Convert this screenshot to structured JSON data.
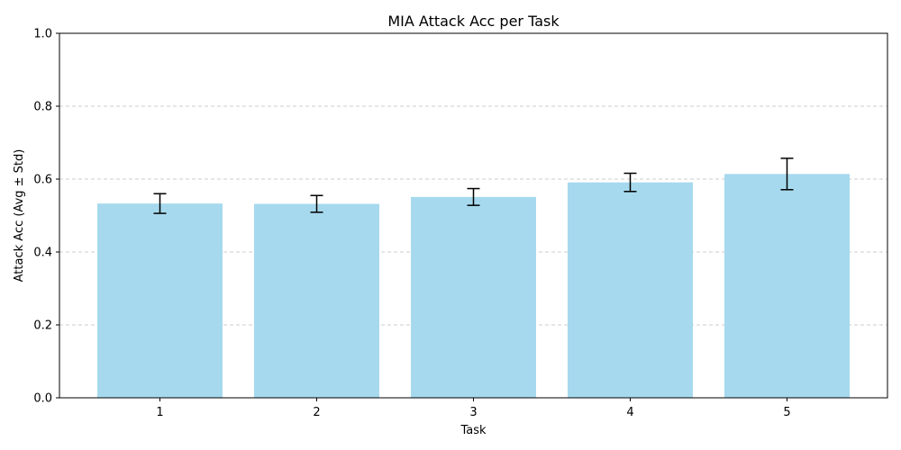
{
  "chart_data": {
    "type": "bar",
    "title": "MIA Attack Acc per Task",
    "xlabel": "Task",
    "ylabel": "Attack Acc (Avg ± Std)",
    "categories": [
      "1",
      "2",
      "3",
      "4",
      "5"
    ],
    "values": [
      0.533,
      0.532,
      0.551,
      0.591,
      0.614
    ],
    "errors": [
      0.027,
      0.023,
      0.023,
      0.025,
      0.043
    ],
    "ylim": [
      0,
      1
    ],
    "yticks": [
      "0.0",
      "0.2",
      "0.4",
      "0.6",
      "0.8",
      "1.0"
    ],
    "grid": "y-dashed",
    "bar_color": "#a6d9ee",
    "error_color": "#000000",
    "grid_color": "#cccccc"
  }
}
